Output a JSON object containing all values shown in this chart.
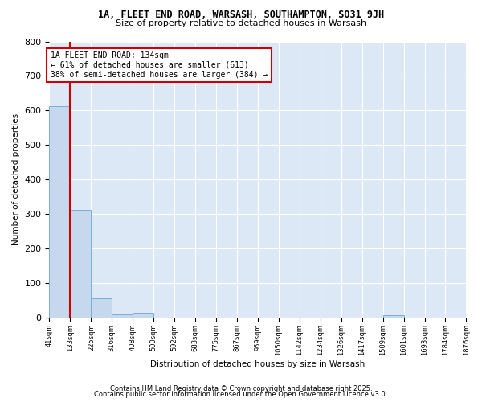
{
  "title1": "1A, FLEET END ROAD, WARSASH, SOUTHAMPTON, SO31 9JH",
  "title2": "Size of property relative to detached houses in Warsash",
  "xlabel": "Distribution of detached houses by size in Warsash",
  "ylabel": "Number of detached properties",
  "annotation_title": "1A FLEET END ROAD: 134sqm",
  "annotation_line2": "← 61% of detached houses are smaller (613)",
  "annotation_line3": "38% of semi-detached houses are larger (384) →",
  "property_size_bin": 133,
  "bins": [
    41,
    133,
    225,
    316,
    408,
    500,
    592,
    683,
    775,
    867,
    959,
    1050,
    1142,
    1234,
    1326,
    1417,
    1509,
    1601,
    1693,
    1784,
    1876
  ],
  "counts": [
    613,
    313,
    55,
    10,
    13,
    0,
    0,
    0,
    0,
    0,
    0,
    0,
    0,
    0,
    0,
    0,
    7,
    0,
    0,
    0,
    0
  ],
  "bar_color": "#c5d8ee",
  "bar_edge_color": "#7bafd4",
  "red_line_color": "#cc0000",
  "annotation_box_edgecolor": "#cc0000",
  "background_color": "#dce8f5",
  "grid_color": "#ffffff",
  "footer1": "Contains HM Land Registry data © Crown copyright and database right 2025.",
  "footer2": "Contains public sector information licensed under the Open Government Licence v3.0."
}
